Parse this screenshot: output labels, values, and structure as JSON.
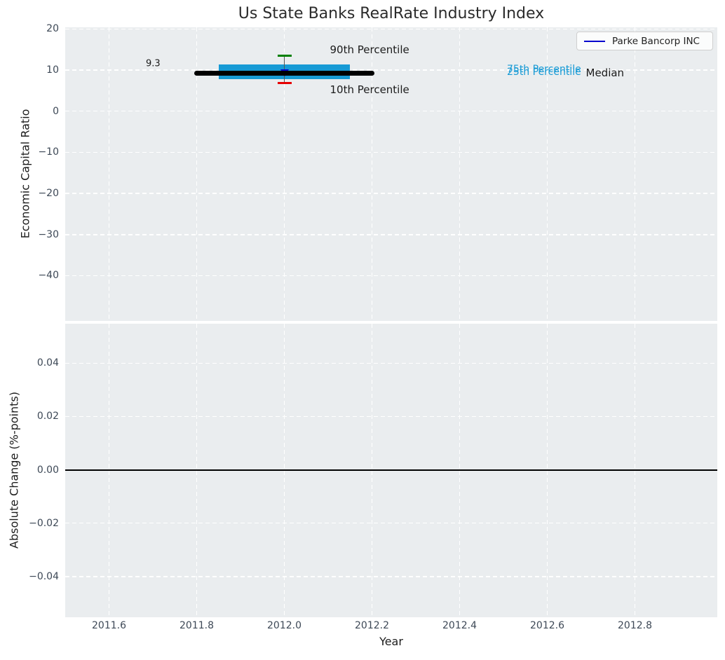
{
  "styles": {
    "axes_bg": "#eaedef",
    "grid_color": "#ffffff",
    "tick_label_color": "#3d4856",
    "title_color": "#2b2b2b",
    "label_color": "#1c1c1c",
    "box_color": "#179ad5",
    "p90_color": "#008000",
    "p10_color": "#e60000",
    "median_color": "#000000",
    "whisker_color": "#555555",
    "zero_line_color": "#000000",
    "legend_bg": "rgba(255,255,255,0.8)",
    "legend_border": "#cfcfcf",
    "legend_text_color": "#1f1f1f",
    "series_color": "#0000cd"
  },
  "chart_data": [
    {
      "id": "industry-index",
      "type": "scatter",
      "title": "Us State Banks RealRate Industry Index",
      "ylabel": "Economic Capital Ratio",
      "xlabel": "",
      "xlim": [
        2011.5,
        2012.988
      ],
      "ylim": [
        -51.0,
        20.4
      ],
      "grid": true,
      "show_xticklabels": false,
      "legend_position": "upper right",
      "xticks": {
        "values": [
          2011.6,
          2011.8,
          2012.0,
          2012.2,
          2012.4,
          2012.6,
          2012.8
        ],
        "labels": [
          "2011.6",
          "2011.8",
          "2012.0",
          "2012.2",
          "2012.4",
          "2012.6",
          "2012.8"
        ]
      },
      "yticks": {
        "values": [
          20,
          10,
          0,
          -10,
          -20,
          -30,
          -40
        ],
        "labels": [
          "20",
          "10",
          "0",
          "−10",
          "−20",
          "−30",
          "−40"
        ]
      },
      "series": [
        {
          "name": "Parke Bancorp INC",
          "color": "#0000cd",
          "marker": "triangle-down",
          "x": [
            2012.0
          ],
          "values": [
            9.3
          ]
        }
      ],
      "percentile_summary": {
        "x": 2012.0,
        "p90": 13.5,
        "p75": 11.3,
        "median": 9.3,
        "p25": 7.75,
        "p10": 6.8,
        "median_x_span": [
          2011.8,
          2012.2
        ],
        "box_x_span": [
          2011.85,
          2012.15
        ],
        "whisker_cap_halfwidth_years": 0.016
      },
      "annotations": [
        {
          "text": "9.3",
          "x": 2011.684,
          "y": 11.5,
          "color": "#1b1b1b",
          "size": 13
        },
        {
          "text": "90th Percentile",
          "x": 2012.104,
          "y": 15.0,
          "color": "#1b1b1b",
          "size": 15
        },
        {
          "text": "10th Percentile",
          "x": 2012.104,
          "y": 5.2,
          "color": "#1b1b1b",
          "size": 15
        },
        {
          "text": "75th Percentile",
          "x": 2012.508,
          "y": 10.2,
          "color": "#179ad5",
          "size": 14
        },
        {
          "text": "25th Percentile",
          "x": 2012.508,
          "y": 9.55,
          "color": "#179ad5",
          "size": 14
        },
        {
          "text": "Median",
          "x": 2012.688,
          "y": 9.25,
          "color": "#1b1b1b",
          "size": 15
        }
      ]
    },
    {
      "id": "absolute-change",
      "type": "line",
      "title": "",
      "ylabel": "Absolute Change (%-points)",
      "xlabel": "Year",
      "xlim": [
        2011.5,
        2012.988
      ],
      "ylim": [
        -0.0553,
        0.0548
      ],
      "grid": true,
      "show_xticklabels": true,
      "xticks": {
        "values": [
          2011.6,
          2011.8,
          2012.0,
          2012.2,
          2012.4,
          2012.6,
          2012.8
        ],
        "labels": [
          "2011.6",
          "2011.8",
          "2012.0",
          "2012.2",
          "2012.4",
          "2012.6",
          "2012.8"
        ]
      },
      "yticks": {
        "values": [
          0.04,
          0.02,
          0.0,
          -0.02,
          -0.04
        ],
        "labels": [
          "0.04",
          "0.02",
          "0.00",
          "−0.02",
          "−0.04"
        ]
      },
      "zero_line": 0.0,
      "series": [],
      "annotations": []
    }
  ]
}
